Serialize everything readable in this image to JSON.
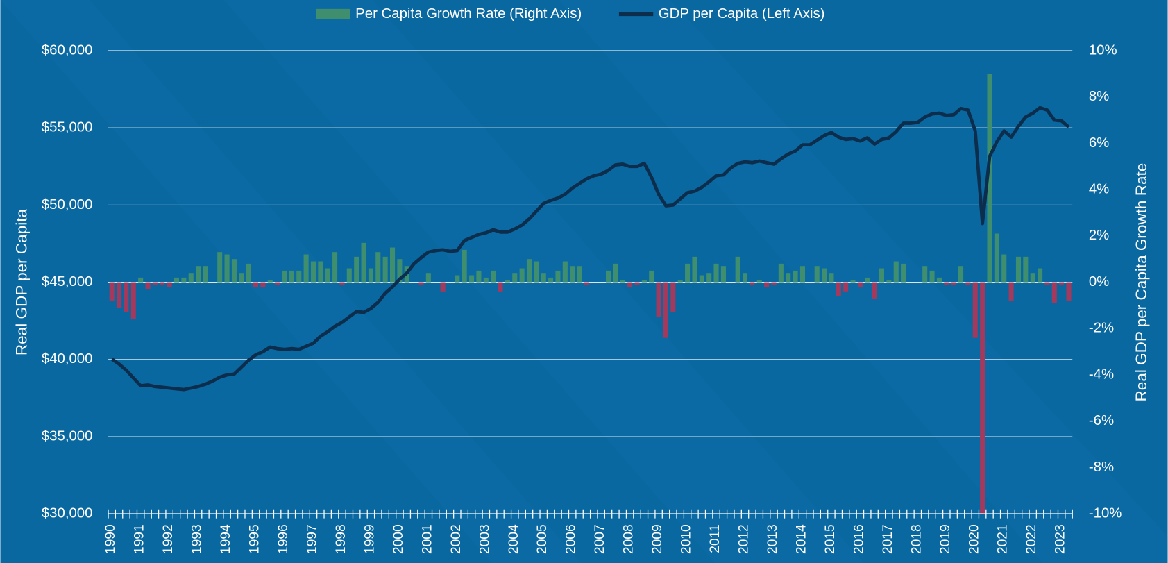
{
  "chart_data": {
    "type": "combo",
    "y_axis_label": "Real GDP per Capita",
    "y2_axis_label": "Real GDP per Capita Growth Rate",
    "categories": [
      "1990",
      null,
      null,
      null,
      "1991",
      null,
      null,
      null,
      "1992",
      null,
      null,
      null,
      "1993",
      null,
      null,
      null,
      "1994",
      null,
      null,
      null,
      "1995",
      null,
      null,
      null,
      "1996",
      null,
      null,
      null,
      "1997",
      null,
      null,
      null,
      "1998",
      null,
      null,
      null,
      "1999",
      null,
      null,
      null,
      "2000",
      null,
      null,
      null,
      "2001",
      null,
      null,
      null,
      "2002",
      null,
      null,
      null,
      "2003",
      null,
      null,
      null,
      "2004",
      null,
      null,
      null,
      "2005",
      null,
      null,
      null,
      "2006",
      null,
      null,
      null,
      "2007",
      null,
      null,
      null,
      "2008",
      null,
      null,
      null,
      "2009",
      null,
      null,
      null,
      "2010",
      null,
      null,
      null,
      "2011",
      null,
      null,
      null,
      "2012",
      null,
      null,
      null,
      "2013",
      null,
      null,
      null,
      "2014",
      null,
      null,
      null,
      "2015",
      null,
      null,
      null,
      "2016",
      null,
      null,
      null,
      "2017",
      null,
      null,
      null,
      "2018",
      null,
      null,
      null,
      "2019",
      null,
      null,
      null,
      "2020",
      null,
      null,
      null,
      "2021",
      null,
      null,
      null,
      "2022",
      null,
      null,
      null,
      "2023",
      null
    ],
    "ylim": [
      30000,
      60000
    ],
    "yticks": [
      {
        "value": 30000,
        "label": "$30,000"
      },
      {
        "value": 35000,
        "label": "$35,000"
      },
      {
        "value": 40000,
        "label": "$40,000"
      },
      {
        "value": 45000,
        "label": "$45,000"
      },
      {
        "value": 50000,
        "label": "$50,000"
      },
      {
        "value": 55000,
        "label": "$55,000"
      },
      {
        "value": 60000,
        "label": "$60,000"
      }
    ],
    "y2lim": [
      -10,
      10
    ],
    "y2ticks": [
      {
        "value": -10,
        "label": "-10%"
      },
      {
        "value": -8,
        "label": "-8%"
      },
      {
        "value": -6,
        "label": "-6%"
      },
      {
        "value": -4,
        "label": "-4%"
      },
      {
        "value": -2,
        "label": "-2%"
      },
      {
        "value": 0,
        "label": "0%"
      },
      {
        "value": 2,
        "label": "2%"
      },
      {
        "value": 4,
        "label": "4%"
      },
      {
        "value": 6,
        "label": "6%"
      },
      {
        "value": 8,
        "label": "8%"
      },
      {
        "value": 10,
        "label": "10%"
      }
    ],
    "grid": true,
    "legend": "top",
    "series": [
      {
        "name": "Per Capita Growth Rate (Right Axis)",
        "type": "bar",
        "axis": "y2",
        "color": "#3f8f6f",
        "negative_color": "#a3395c",
        "values": [
          -0.8,
          -1.1,
          -1.3,
          -1.6,
          0.2,
          -0.3,
          -0.1,
          -0.1,
          -0.2,
          0.2,
          0.2,
          0.4,
          0.7,
          0.7,
          0.0,
          1.3,
          1.2,
          1.0,
          0.4,
          0.8,
          -0.2,
          -0.2,
          0.1,
          -0.1,
          0.5,
          0.5,
          0.5,
          1.2,
          0.9,
          0.9,
          0.6,
          1.3,
          -0.1,
          0.6,
          1.1,
          1.7,
          0.6,
          1.3,
          1.1,
          1.5,
          1.0,
          0.7,
          0.0,
          -0.1,
          0.4,
          0.0,
          -0.4,
          0.0,
          0.3,
          1.4,
          0.3,
          0.5,
          0.2,
          0.5,
          -0.4,
          0.1,
          0.4,
          0.6,
          1.0,
          0.9,
          0.4,
          0.2,
          0.5,
          0.9,
          0.7,
          0.7,
          -0.1,
          0.0,
          0.0,
          0.5,
          0.8,
          0.1,
          -0.2,
          -0.1,
          0.1,
          0.5,
          -1.5,
          -2.4,
          -1.3,
          0.1,
          0.8,
          1.1,
          0.3,
          0.4,
          0.8,
          0.7,
          0.0,
          1.1,
          0.4,
          -0.1,
          0.1,
          -0.2,
          -0.1,
          0.8,
          0.4,
          0.5,
          0.7,
          0.0,
          0.7,
          0.6,
          0.4,
          -0.6,
          -0.4,
          0.1,
          -0.2,
          0.2,
          -0.7,
          0.6,
          0.1,
          0.9,
          0.8,
          0.0,
          0.0,
          0.7,
          0.5,
          0.2,
          -0.1,
          -0.1,
          0.7,
          -0.1,
          -2.4,
          -10,
          9.0,
          2.1,
          1.2,
          -0.8,
          1.1,
          1.1,
          0.4,
          0.6,
          -0.1,
          -0.9,
          -0.1,
          -0.8
        ]
      },
      {
        "name": "GDP per Capita (Left Axis)",
        "type": "line",
        "axis": "y",
        "color": "#0d2d4c",
        "values": [
          40030,
          39700,
          39300,
          38800,
          38300,
          38350,
          38250,
          38200,
          38150,
          38100,
          38050,
          38150,
          38250,
          38400,
          38600,
          38850,
          39000,
          39050,
          39500,
          39950,
          40300,
          40500,
          40800,
          40700,
          40650,
          40700,
          40650,
          40850,
          41050,
          41500,
          41800,
          42150,
          42400,
          42750,
          43100,
          43050,
          43300,
          43700,
          44300,
          44700,
          45200,
          45600,
          46200,
          46600,
          46950,
          47050,
          47100,
          47000,
          47050,
          47700,
          47900,
          48100,
          48200,
          48400,
          48250,
          48250,
          48450,
          48700,
          49100,
          49600,
          50100,
          50300,
          50450,
          50700,
          51100,
          51400,
          51700,
          51900,
          52000,
          52250,
          52600,
          52650,
          52500,
          52500,
          52700,
          51800,
          50700,
          49950,
          50000,
          50400,
          50800,
          50900,
          51150,
          51500,
          51900,
          51950,
          52400,
          52700,
          52800,
          52750,
          52850,
          52750,
          52650,
          53000,
          53300,
          53500,
          53900,
          53900,
          54200,
          54500,
          54700,
          54400,
          54250,
          54300,
          54150,
          54350,
          53950,
          54250,
          54350,
          54750,
          55300,
          55300,
          55350,
          55700,
          55900,
          55950,
          55800,
          55850,
          56250,
          56150,
          54800,
          48800,
          53150,
          54100,
          54800,
          54400,
          55100,
          55700,
          55950,
          56300,
          56150,
          55500,
          55450,
          55050
        ]
      }
    ]
  }
}
